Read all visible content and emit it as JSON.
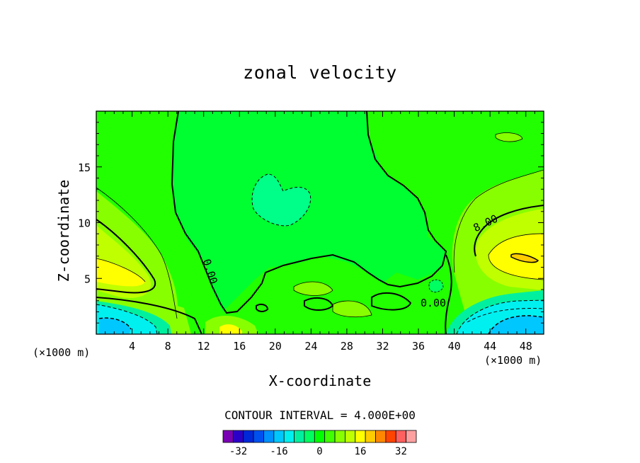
{
  "chart_data": {
    "type": "contour",
    "title": "zonal velocity",
    "xlabel": "X-coordinate",
    "ylabel": "Z-coordinate",
    "x_unit_label": "(×1000 m)",
    "x_unit_label_right": "(×1000 m)",
    "xlim": [
      0,
      50
    ],
    "ylim": [
      0,
      20
    ],
    "x_ticks": [
      4,
      8,
      12,
      16,
      20,
      24,
      28,
      32,
      36,
      40,
      44,
      48
    ],
    "x_tick_labels": [
      "4",
      "8",
      "12",
      "16",
      "20",
      "24",
      "28",
      "32",
      "36",
      "40",
      "44",
      "48"
    ],
    "y_ticks": [
      5,
      10,
      15
    ],
    "y_tick_labels": [
      "5",
      "10",
      "15"
    ],
    "contour_interval_text": "CONTOUR INTERVAL = 4.000E+00",
    "contour_labels": [
      "0.00",
      "0.00",
      "8.00"
    ],
    "colorbar": {
      "levels": [
        -36,
        -32,
        -28,
        -24,
        -20,
        -16,
        -12,
        -8,
        -4,
        0,
        4,
        8,
        12,
        16,
        20,
        24,
        28,
        32,
        36
      ],
      "colors": [
        "#7a00b4",
        "#2a00c8",
        "#0028d8",
        "#0050f0",
        "#0090ff",
        "#00c8ff",
        "#00f0f0",
        "#00f0a0",
        "#00ff60",
        "#00ff00",
        "#40ff00",
        "#88ff00",
        "#c0ff00",
        "#ffff00",
        "#ffcc00",
        "#ff8800",
        "#ff4400",
        "#ff6060",
        "#ffa0a0"
      ],
      "tick_labels": [
        "-32",
        "-16",
        "0",
        "16",
        "32"
      ],
      "tick_values": [
        -32,
        -16,
        0,
        16,
        32
      ]
    }
  }
}
